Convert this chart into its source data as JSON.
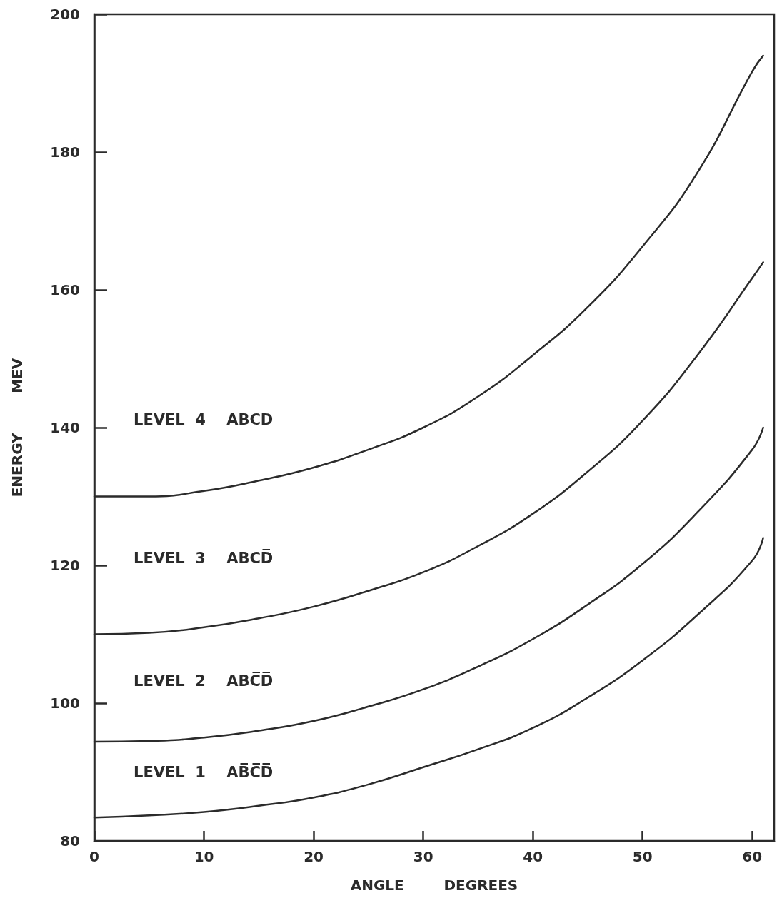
{
  "chart_data": {
    "type": "line",
    "xlabel": "ANGLE        DEGREES",
    "ylabel": "ENERGY        MEV",
    "xlim": [
      0,
      62
    ],
    "ylim": [
      80,
      200
    ],
    "xticks": [
      0,
      10,
      20,
      30,
      40,
      50,
      60
    ],
    "yticks": [
      80,
      100,
      120,
      140,
      160,
      180,
      200
    ],
    "grid": false,
    "marker": "none",
    "line_style": "solid",
    "x": [
      0,
      5,
      10,
      15,
      20,
      25,
      30,
      35,
      40,
      45,
      50,
      55,
      60,
      61
    ],
    "series": [
      {
        "color": "#2b2b2b",
        "values": [
          130,
          130,
          130.8,
          132.3,
          134.2,
          136.8,
          140,
          144.5,
          150.5,
          157.5,
          166.3,
          177,
          191.7,
          194
        ]
      },
      {
        "color": "#2b2b2b",
        "values": [
          110,
          110.2,
          111,
          112.3,
          114,
          116.3,
          119,
          122.8,
          127.5,
          133.6,
          141,
          150.5,
          161.7,
          164
        ]
      },
      {
        "color": "#2b2b2b",
        "values": [
          94.4,
          94.5,
          95,
          96,
          97.4,
          99.5,
          102,
          105.3,
          109.3,
          114.3,
          120.2,
          127.7,
          136.8,
          140
        ]
      },
      {
        "color": "#2b2b2b",
        "values": [
          83.4,
          83.7,
          84.2,
          85.1,
          86.3,
          88.2,
          90.7,
          93.3,
          96.4,
          100.8,
          106.2,
          112.8,
          120.7,
          124
        ]
      }
    ],
    "annotations": [
      "LEVEL  4    ABCD",
      "LEVEL  3    ABCD̅",
      "LEVEL  2    ABC̅D̅",
      "LEVEL  1    AB̅C̅D̅"
    ]
  }
}
